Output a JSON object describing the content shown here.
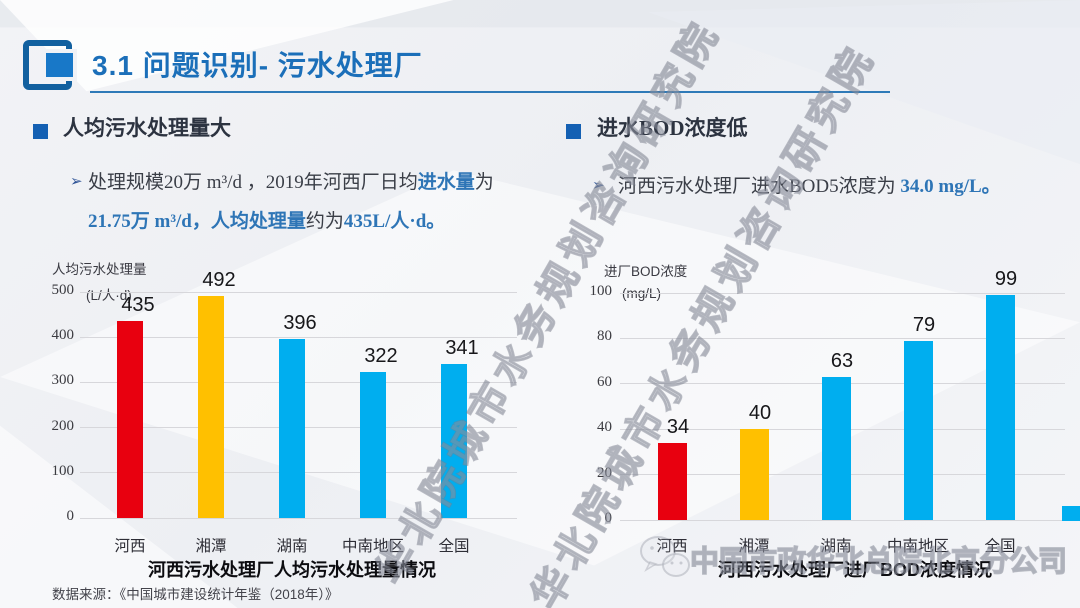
{
  "slide": {
    "header": {
      "title": "3.1 问题识别- 污水处理厂"
    },
    "sections": {
      "left": {
        "marker": "➢",
        "heading": "人均污水处理量大",
        "segments": [
          {
            "text": "处理规模20万 m³/d ，2019年河西厂日均",
            "style": "plain"
          },
          {
            "text": "进水量",
            "style": "accent"
          },
          {
            "text": "为",
            "style": "plain"
          },
          {
            "text": "21.75万 m³/d，",
            "style": "accent"
          },
          {
            "text": "人均处理量",
            "style": "accent"
          },
          {
            "text": "约为",
            "style": "plain"
          },
          {
            "text": "435L/人·d。",
            "style": "accent"
          }
        ]
      },
      "right": {
        "marker": "➢",
        "heading": "进水BOD浓度低",
        "segments": [
          {
            "text": "河西污水处理厂进水BOD5浓度为 ",
            "style": "plain"
          },
          {
            "text": "34.0 mg/L。",
            "style": "accent"
          }
        ]
      }
    },
    "source": "数据来源：《中国城市建设统计年鉴（2018年）》",
    "watermarks": {
      "diagonal": "华北院城市水务规划咨询研究院",
      "bottom": "中国市政华北总院北京分公司"
    }
  },
  "chart_data": [
    {
      "type": "bar",
      "title": "河西污水处理厂人均污水处理量情况",
      "axis_label": "人均污水处理量",
      "unit_label": "(L/人·d)",
      "categories": [
        "河西",
        "湘潭",
        "湖南",
        "中南地区",
        "全国"
      ],
      "values": [
        435,
        492,
        396,
        322,
        341
      ],
      "bar_colors": [
        "#e8000f",
        "#ffc000",
        "#00aeef",
        "#00aeef",
        "#00aeef"
      ],
      "ylim": [
        0,
        500
      ],
      "yticks": [
        500,
        400,
        300,
        200,
        100,
        0
      ],
      "grid": true,
      "legend": "none"
    },
    {
      "type": "bar",
      "title": "河西污水处理厂进厂BOD浓度情况",
      "axis_label": "进厂BOD浓度",
      "unit_label": "(mg/L)",
      "categories": [
        "河西",
        "湘潭",
        "湖南",
        "中南地区",
        "全国"
      ],
      "values": [
        34,
        40,
        63,
        79,
        99
      ],
      "bar_colors": [
        "#e8000f",
        "#ffc000",
        "#00aeef",
        "#00aeef",
        "#00aeef"
      ],
      "ylim": [
        0,
        100
      ],
      "yticks": [
        100,
        80,
        60,
        40,
        20,
        0
      ],
      "grid": true,
      "legend": "none"
    }
  ],
  "theme": {
    "accent_blue": "#2e75b6",
    "title_blue": "#1b6fb9",
    "bar_red": "#e8000f",
    "bar_yellow": "#ffc000",
    "bar_cyan": "#00aeef"
  }
}
